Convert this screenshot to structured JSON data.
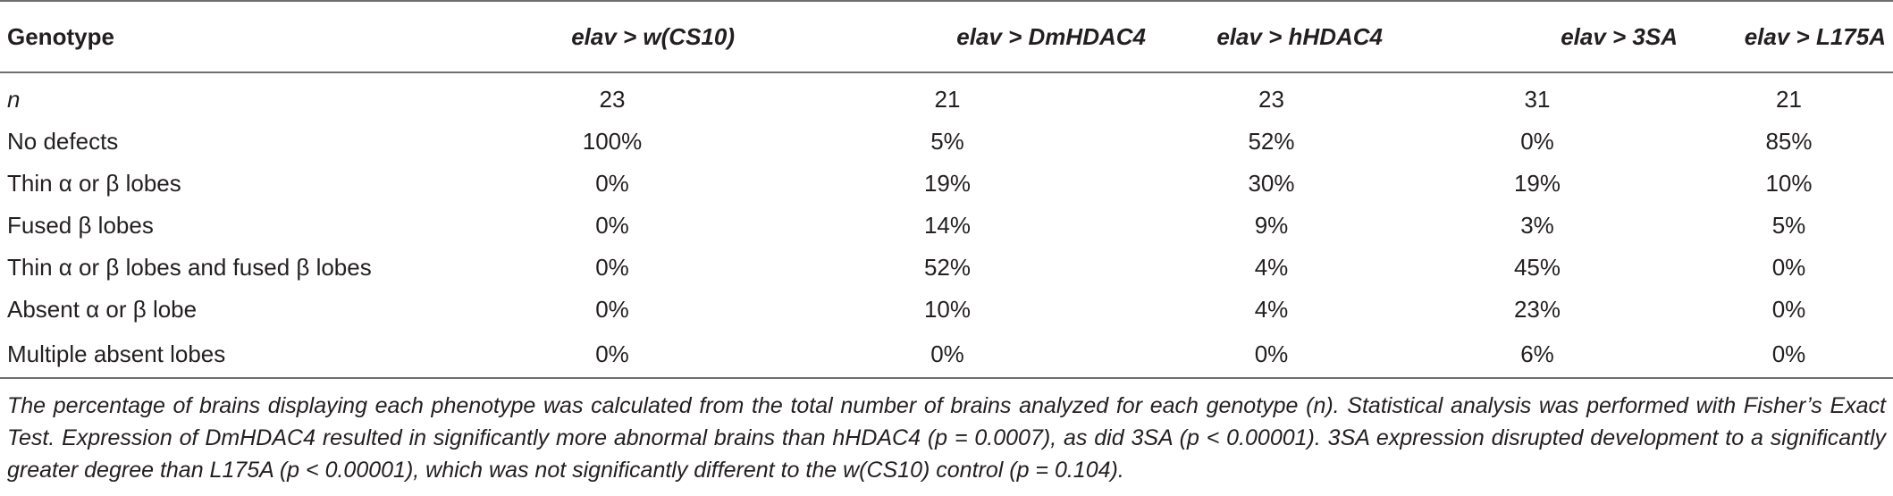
{
  "table": {
    "header": [
      "Genotype",
      "elav >  w(CS10)",
      "elav >  DmHDAC4",
      "elav > hHDAC4",
      "elav > 3SA",
      "elav > L175A"
    ],
    "rows": [
      [
        "n",
        "23",
        "21",
        "23",
        "31",
        "21"
      ],
      [
        "No defects",
        "100%",
        "5%",
        "52%",
        "0%",
        "85%"
      ],
      [
        "Thin α or β lobes",
        "0%",
        "19%",
        "30%",
        "19%",
        "10%"
      ],
      [
        "Fused β lobes",
        "0%",
        "14%",
        "9%",
        "3%",
        "5%"
      ],
      [
        "Thin α or β lobes and fused β lobes",
        "0%",
        "52%",
        "4%",
        "45%",
        "0%"
      ],
      [
        "Absent α or β lobe",
        "0%",
        "10%",
        "4%",
        "23%",
        "0%"
      ],
      [
        "Multiple absent lobes",
        "0%",
        "0%",
        "0%",
        "6%",
        "0%"
      ]
    ],
    "footnote": "The percentage of brains displaying each phenotype was calculated from the total number of brains analyzed for each genotype (n). Statistical analysis was performed with Fisher’s Exact Test. Expression of DmHDAC4 resulted in significantly more abnormal brains than hHDAC4 (p = 0.0007), as did 3SA (p < 0.00001). 3SA expression disrupted development to a significantly greater degree than L175A (p < 0.00001), which was not significantly different to the w(CS10) control (p = 0.104)."
  }
}
